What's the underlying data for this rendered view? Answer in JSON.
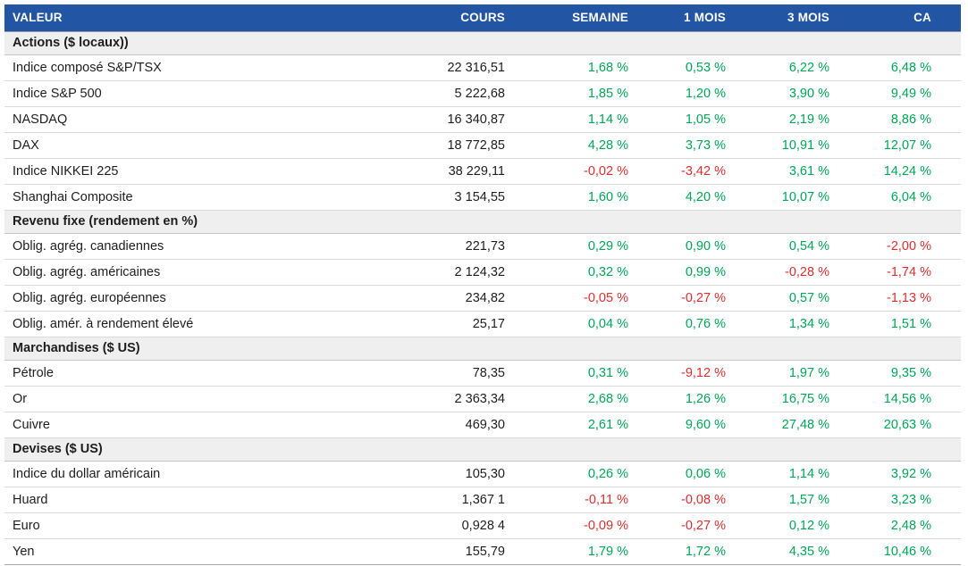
{
  "colors": {
    "header_bg": "#2256A5",
    "header_text": "#FFFFFF",
    "positive": "#00A557",
    "negative": "#DB2F2F",
    "section_bg": "#EFEFEF"
  },
  "table": {
    "columns": [
      "VALEUR",
      "COURS",
      "SEMAINE",
      "1 MOIS",
      "3 MOIS",
      "CA"
    ],
    "change_column_keys": [
      "semaine",
      "1-mois",
      "3-mois",
      "ca"
    ],
    "sections": [
      {
        "title": "Actions ($ locaux))",
        "rows": [
          {
            "label": "Indice composé S&P/TSX",
            "cours": "22 316,51",
            "changes": [
              "1,68 %",
              "0,53 %",
              "6,22 %",
              "6,48 %"
            ]
          },
          {
            "label": "Indice S&P 500",
            "cours": "5 222,68",
            "changes": [
              "1,85 %",
              "1,20 %",
              "3,90 %",
              "9,49 %"
            ]
          },
          {
            "label": "NASDAQ",
            "cours": "16 340,87",
            "changes": [
              "1,14 %",
              "1,05 %",
              "2,19 %",
              "8,86 %"
            ]
          },
          {
            "label": "DAX",
            "cours": "18 772,85",
            "changes": [
              "4,28 %",
              "3,73 %",
              "10,91 %",
              "12,07 %"
            ]
          },
          {
            "label": "Indice NIKKEI 225",
            "cours": "38 229,11",
            "changes": [
              "-0,02 %",
              "-3,42 %",
              "3,61 %",
              "14,24 %"
            ]
          },
          {
            "label": "Shanghai Composite",
            "cours": "3 154,55",
            "changes": [
              "1,60 %",
              "4,20 %",
              "10,07 %",
              "6,04 %"
            ]
          }
        ]
      },
      {
        "title": "Revenu fixe (rendement en %)",
        "rows": [
          {
            "label": "Oblig. agrég. canadiennes",
            "cours": "221,73",
            "changes": [
              "0,29 %",
              "0,90 %",
              "0,54 %",
              "-2,00 %"
            ]
          },
          {
            "label": "Oblig. agrég. américaines",
            "cours": "2 124,32",
            "changes": [
              "0,32 %",
              "0,99 %",
              "-0,28 %",
              "-1,74 %"
            ]
          },
          {
            "label": "Oblig. agrég. européennes",
            "cours": "234,82",
            "changes": [
              "-0,05 %",
              "-0,27 %",
              "0,57 %",
              "-1,13 %"
            ]
          },
          {
            "label": "Oblig. amér. à rendement élevé",
            "cours": "25,17",
            "changes": [
              "0,04 %",
              "0,76 %",
              "1,34 %",
              "1,51 %"
            ]
          }
        ]
      },
      {
        "title": "Marchandises ($ US)",
        "rows": [
          {
            "label": "Pétrole",
            "cours": "78,35",
            "changes": [
              "0,31 %",
              "-9,12 %",
              "1,97 %",
              "9,35 %"
            ]
          },
          {
            "label": "Or",
            "cours": "2 363,34",
            "changes": [
              "2,68 %",
              "1,26 %",
              "16,75 %",
              "14,56 %"
            ]
          },
          {
            "label": "Cuivre",
            "cours": "469,30",
            "changes": [
              "2,61 %",
              "9,60 %",
              "27,48 %",
              "20,63 %"
            ]
          }
        ]
      },
      {
        "title": "Devises ($ US)",
        "rows": [
          {
            "label": "Indice du dollar américain",
            "cours": "105,30",
            "changes": [
              "0,26 %",
              "0,06 %",
              "1,14 %",
              "3,92 %"
            ]
          },
          {
            "label": "Huard",
            "cours": "1,367 1",
            "changes": [
              "-0,11 %",
              "-0,08 %",
              "1,57 %",
              "3,23 %"
            ]
          },
          {
            "label": "Euro",
            "cours": "0,928 4",
            "changes": [
              "-0,09 %",
              "-0,27 %",
              "0,12 %",
              "2,48 %"
            ]
          },
          {
            "label": "Yen",
            "cours": "155,79",
            "changes": [
              "1,79 %",
              "1,72 %",
              "4,35 %",
              "10,46 %"
            ]
          }
        ]
      }
    ]
  }
}
